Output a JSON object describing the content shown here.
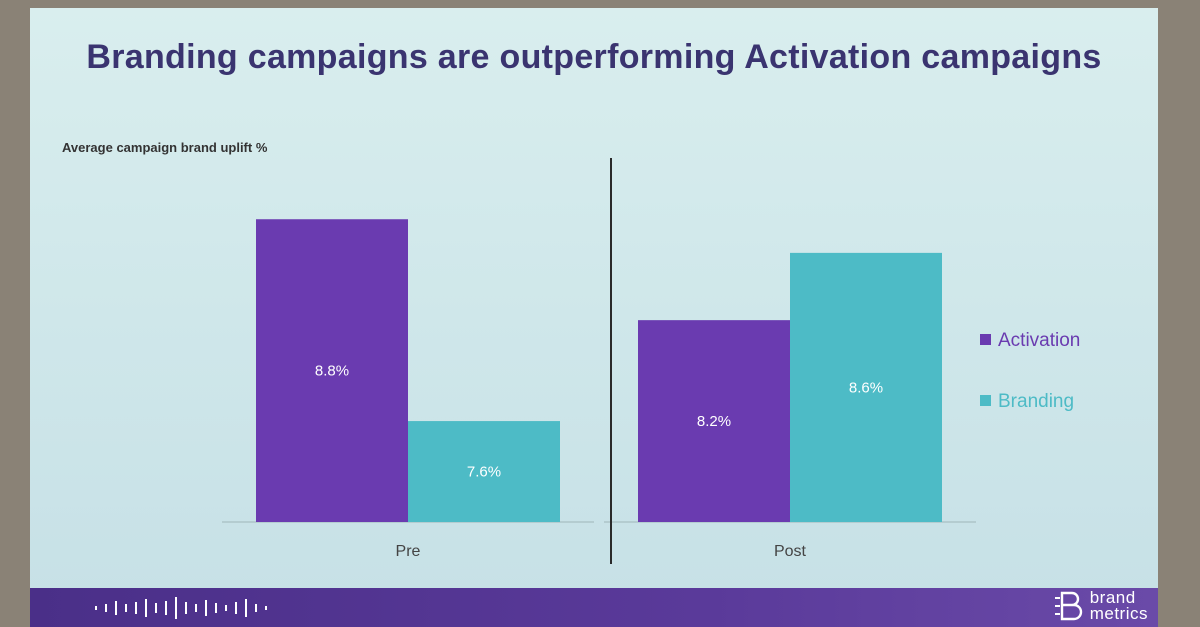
{
  "slide": {
    "title": "Branding campaigns are outperforming Activation campaigns",
    "title_color": "#3a3470"
  },
  "chart_data": {
    "type": "bar",
    "title": "",
    "ylabel": "Average campaign brand uplift %",
    "xlabel": "",
    "categories": [
      "Pre",
      "Post"
    ],
    "series": [
      {
        "name": "Activation",
        "color": "#6a3bb0",
        "values": [
          8.8,
          8.2
        ],
        "labels": [
          "8.8%",
          "8.2%"
        ]
      },
      {
        "name": "Branding",
        "color": "#4dbbc6",
        "values": [
          7.6,
          8.6
        ],
        "labels": [
          "7.6%",
          "8.6%"
        ]
      }
    ],
    "ylim": [
      7.0,
      8.95
    ],
    "grid": false,
    "legend_position": "right",
    "divider_between_categories": true
  },
  "footer": {
    "background": "#4a2f88",
    "logo_line1": "brand",
    "logo_line2": "metrics",
    "logo_icon": "brand-metrics-b-icon"
  }
}
